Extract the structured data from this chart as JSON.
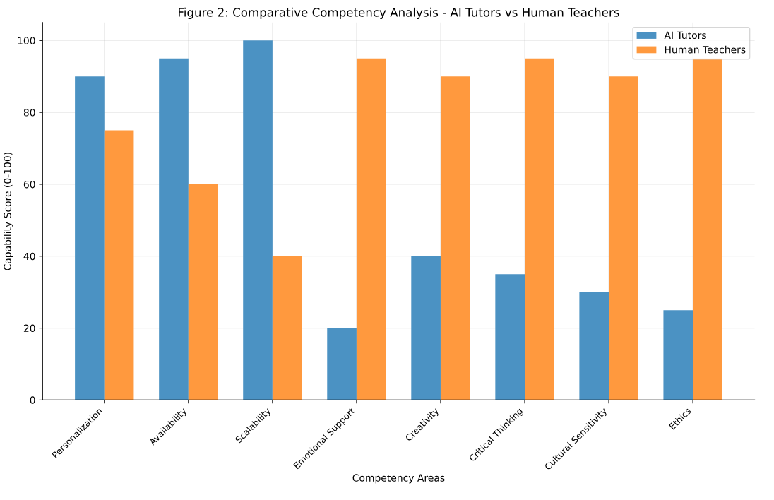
{
  "chart_data": {
    "type": "bar",
    "title": "Figure 2: Comparative Competency Analysis - AI Tutors vs Human Teachers",
    "xlabel": "Competency Areas",
    "ylabel": "Capability Score (0-100)",
    "categories": [
      "Personalization",
      "Availability",
      "Scalability",
      "Emotional Support",
      "Creativity",
      "Critical Thinking",
      "Cultural Sensitivity",
      "Ethics"
    ],
    "series": [
      {
        "name": "AI Tutors",
        "color": "#4b92c3",
        "values": [
          90,
          95,
          100,
          20,
          40,
          35,
          30,
          25
        ]
      },
      {
        "name": "Human Teachers",
        "color": "#ff993e",
        "values": [
          75,
          60,
          40,
          95,
          90,
          95,
          90,
          95
        ]
      }
    ],
    "ylim": [
      0,
      105
    ],
    "yticks": [
      0,
      20,
      40,
      60,
      80,
      100
    ],
    "grid": true,
    "legend": "top right"
  }
}
